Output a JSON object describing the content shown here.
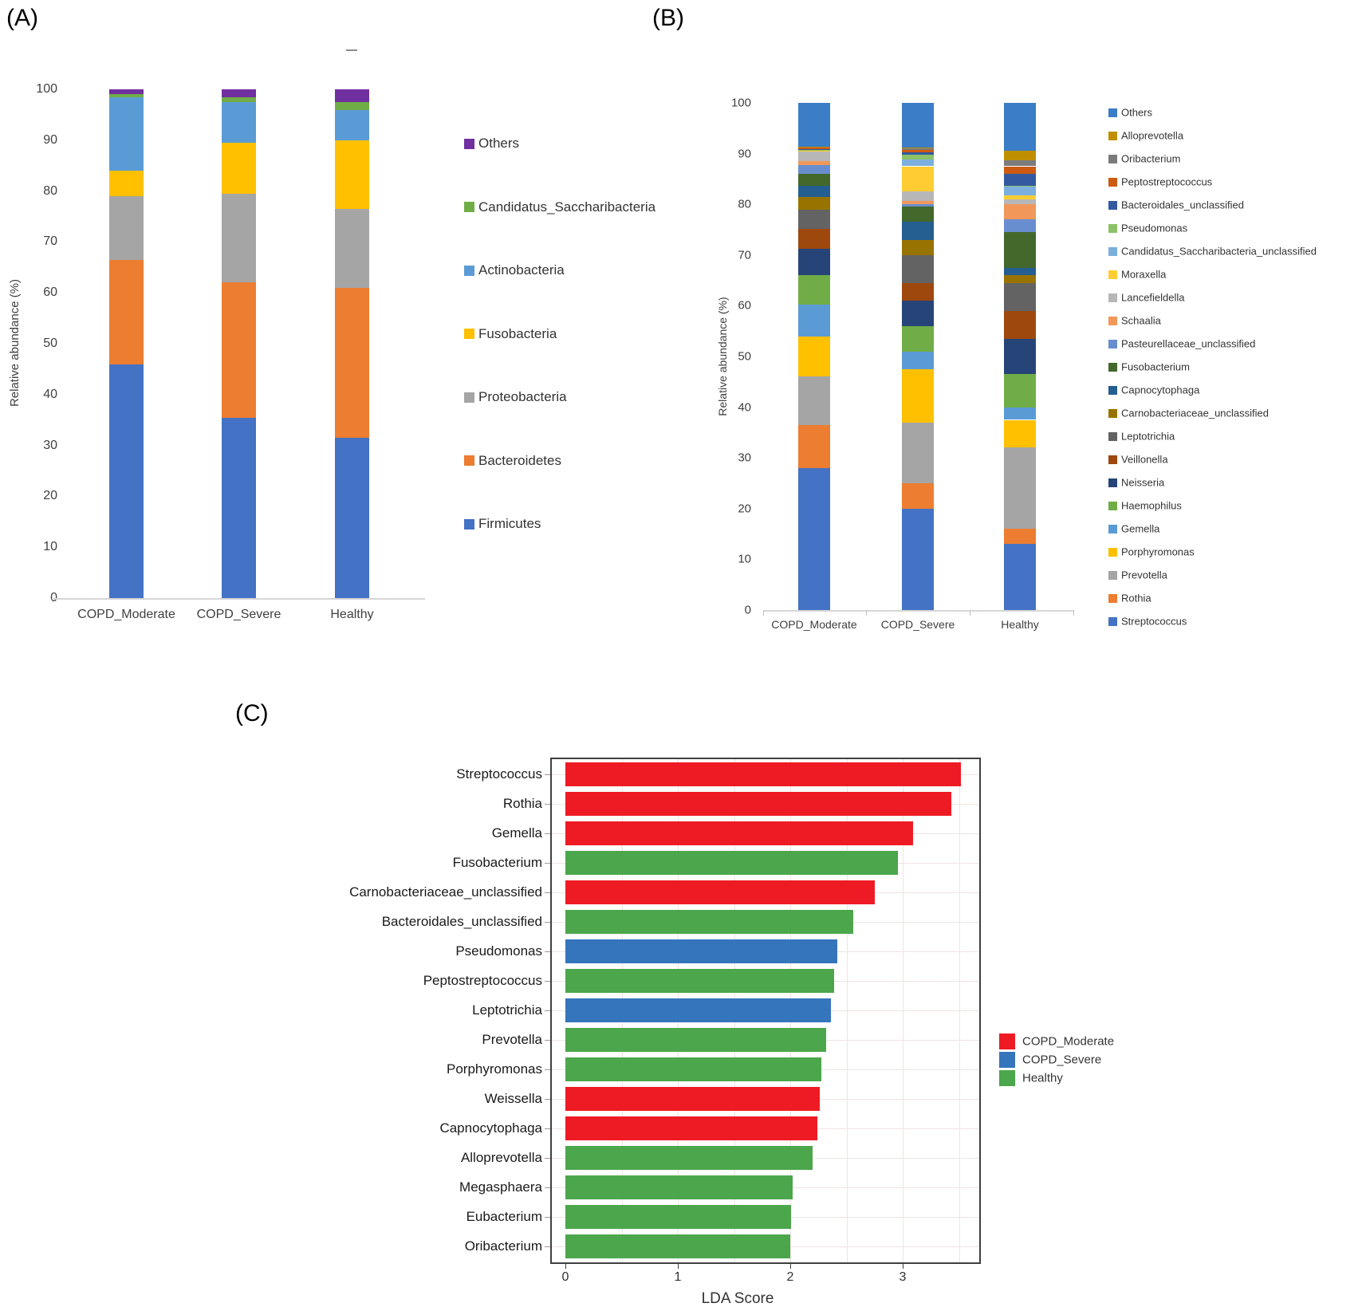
{
  "figure": {
    "background": "#ffffff"
  },
  "chart_data": [
    {
      "id": "A",
      "panel_label": "(A)",
      "type": "bar",
      "subtype": "stacked-vertical",
      "title": "",
      "ylabel": "Relative abundance (%)",
      "xlabel": "",
      "ylim": [
        0,
        100
      ],
      "yticks": [
        0,
        10,
        20,
        30,
        40,
        50,
        60,
        70,
        80,
        90,
        100
      ],
      "grid": false,
      "legend_position": "right",
      "categories": [
        "COPD_Moderate",
        "COPD_Severe",
        "Healthy"
      ],
      "series_order": "bottom_to_top",
      "series": [
        {
          "name": "Firmicutes",
          "color": "#4472C4",
          "values": [
            46.0,
            35.5,
            31.5
          ]
        },
        {
          "name": "Bacteroidetes",
          "color": "#ED7D31",
          "values": [
            20.5,
            26.5,
            29.5
          ]
        },
        {
          "name": "Proteobacteria",
          "color": "#A5A5A5",
          "values": [
            12.5,
            17.5,
            15.5
          ]
        },
        {
          "name": "Fusobacteria",
          "color": "#FFC000",
          "values": [
            5.0,
            10.0,
            13.5
          ]
        },
        {
          "name": "Actinobacteria",
          "color": "#5B9BD5",
          "values": [
            14.5,
            8.0,
            6.0
          ]
        },
        {
          "name": "Candidatus_Saccharibacteria",
          "color": "#70AD47",
          "values": [
            0.5,
            1.0,
            1.5
          ]
        },
        {
          "name": "Others",
          "color": "#7030A0",
          "values": [
            1.0,
            1.5,
            2.5
          ]
        }
      ],
      "legend_top_to_bottom": [
        "Others",
        "Candidatus_Saccharibacteria",
        "Actinobacteria",
        "Fusobacteria",
        "Proteobacteria",
        "Bacteroidetes",
        "Firmicutes"
      ]
    },
    {
      "id": "B",
      "panel_label": "(B)",
      "type": "bar",
      "subtype": "stacked-vertical",
      "title": "",
      "ylabel": "Relative abundance (%)",
      "xlabel": "",
      "ylim": [
        0,
        100
      ],
      "yticks": [
        0,
        10,
        20,
        30,
        40,
        50,
        60,
        70,
        80,
        90,
        100
      ],
      "grid": false,
      "legend_position": "right",
      "categories": [
        "COPD_Moderate",
        "COPD_Severe",
        "Healthy"
      ],
      "series_order": "bottom_to_top",
      "series": [
        {
          "name": "Streptococcus",
          "color": "#4472C4",
          "values": [
            28.0,
            20.0,
            13.0
          ]
        },
        {
          "name": "Rothia",
          "color": "#ED7D31",
          "values": [
            8.5,
            5.0,
            3.0
          ]
        },
        {
          "name": "Prevotella",
          "color": "#A5A5A5",
          "values": [
            9.6,
            12.0,
            16.0
          ]
        },
        {
          "name": "Porphyromonas",
          "color": "#FFC000",
          "values": [
            7.8,
            10.5,
            5.5
          ]
        },
        {
          "name": "Gemella",
          "color": "#5B9BD5",
          "values": [
            6.3,
            3.5,
            2.5
          ]
        },
        {
          "name": "Haemophilus",
          "color": "#70AD47",
          "values": [
            5.8,
            5.0,
            6.5
          ]
        },
        {
          "name": "Neisseria",
          "color": "#264478",
          "values": [
            5.2,
            5.0,
            7.0
          ]
        },
        {
          "name": "Veillonella",
          "color": "#9E480E",
          "values": [
            4.0,
            3.5,
            5.5
          ]
        },
        {
          "name": "Leptotrichia",
          "color": "#636363",
          "values": [
            3.7,
            5.5,
            5.5
          ]
        },
        {
          "name": "Carnobacteriaceae_unclassified",
          "color": "#997300",
          "values": [
            2.5,
            3.0,
            1.5
          ]
        },
        {
          "name": "Capnocytophaga",
          "color": "#255E91",
          "values": [
            2.2,
            3.5,
            1.5
          ]
        },
        {
          "name": "Fusobacterium",
          "color": "#43682B",
          "values": [
            2.4,
            3.0,
            7.0
          ]
        },
        {
          "name": "Pasteurellaceae_unclassified",
          "color": "#698ED0",
          "values": [
            1.7,
            0.5,
            2.5
          ]
        },
        {
          "name": "Schaalia",
          "color": "#F1975A",
          "values": [
            0.8,
            0.7,
            3.0
          ]
        },
        {
          "name": "Lancefieldella",
          "color": "#B7B7B7",
          "values": [
            1.9,
            1.8,
            1.0
          ]
        },
        {
          "name": "Moraxella",
          "color": "#FFCD33",
          "values": [
            0.15,
            5.0,
            0.7
          ]
        },
        {
          "name": "Candidatus_Saccharibacteria_unclassified",
          "color": "#7CAFDD",
          "values": [
            0.15,
            1.3,
            1.8
          ]
        },
        {
          "name": "Pseudomonas",
          "color": "#8CC168",
          "values": [
            0.1,
            1.0,
            0.2
          ]
        },
        {
          "name": "Bacteroidales_unclassified",
          "color": "#335AA1",
          "values": [
            0.1,
            0.4,
            2.3
          ]
        },
        {
          "name": "Peptostreptococcus",
          "color": "#CC5A12",
          "values": [
            0.3,
            0.6,
            1.5
          ]
        },
        {
          "name": "Oribacterium",
          "color": "#7B7B7B",
          "values": [
            0.1,
            0.2,
            1.2
          ]
        },
        {
          "name": "Alloprevotella",
          "color": "#BF8F00",
          "values": [
            0.1,
            0.2,
            1.8
          ]
        },
        {
          "name": "Others",
          "color": "#3B7DC6",
          "values": [
            8.6,
            8.8,
            9.5
          ]
        }
      ],
      "legend_top_to_bottom": [
        "Others",
        "Alloprevotella",
        "Oribacterium",
        "Peptostreptococcus",
        "Bacteroidales_unclassified",
        "Pseudomonas",
        "Candidatus_Saccharibacteria_unclassified",
        "Moraxella",
        "Lancefieldella",
        "Schaalia",
        "Pasteurellaceae_unclassified",
        "Fusobacterium",
        "Capnocytophaga",
        "Carnobacteriaceae_unclassified",
        "Leptotrichia",
        "Veillonella",
        "Neisseria",
        "Haemophilus",
        "Gemella",
        "Porphyromonas",
        "Prevotella",
        "Rothia",
        "Streptococcus"
      ]
    },
    {
      "id": "C",
      "panel_label": "(C)",
      "type": "bar",
      "subtype": "horizontal",
      "title": "",
      "xlabel": "LDA Score",
      "ylabel": "",
      "xlim": [
        0,
        3.7
      ],
      "xticks": [
        0,
        1,
        2,
        3
      ],
      "grid": true,
      "legend_position": "right",
      "groups": [
        {
          "name": "COPD_Moderate",
          "color": "#EE1B24"
        },
        {
          "name": "COPD_Severe",
          "color": "#3575BC"
        },
        {
          "name": "Healthy",
          "color": "#4CA64C"
        }
      ],
      "bars": [
        {
          "label": "Streptococcus",
          "group": "COPD_Moderate",
          "value": 3.52
        },
        {
          "label": "Rothia",
          "group": "COPD_Moderate",
          "value": 3.43
        },
        {
          "label": "Gemella",
          "group": "COPD_Moderate",
          "value": 3.09
        },
        {
          "label": "Fusobacterium",
          "group": "Healthy",
          "value": 2.96
        },
        {
          "label": "Carnobacteriaceae_unclassified",
          "group": "COPD_Moderate",
          "value": 2.75
        },
        {
          "label": "Bacteroidales_unclassified",
          "group": "Healthy",
          "value": 2.56
        },
        {
          "label": "Pseudomonas",
          "group": "COPD_Severe",
          "value": 2.42
        },
        {
          "label": "Peptostreptococcus",
          "group": "Healthy",
          "value": 2.39
        },
        {
          "label": "Leptotrichia",
          "group": "COPD_Severe",
          "value": 2.36
        },
        {
          "label": "Prevotella",
          "group": "Healthy",
          "value": 2.32
        },
        {
          "label": "Porphyromonas",
          "group": "Healthy",
          "value": 2.28
        },
        {
          "label": "Weissella",
          "group": "COPD_Moderate",
          "value": 2.26
        },
        {
          "label": "Capnocytophaga",
          "group": "COPD_Moderate",
          "value": 2.24
        },
        {
          "label": "Alloprevotella",
          "group": "Healthy",
          "value": 2.2
        },
        {
          "label": "Megasphaera",
          "group": "Healthy",
          "value": 2.02
        },
        {
          "label": "Eubacterium",
          "group": "Healthy",
          "value": 2.01
        },
        {
          "label": "Oribacterium",
          "group": "Healthy",
          "value": 2.0
        }
      ]
    }
  ]
}
